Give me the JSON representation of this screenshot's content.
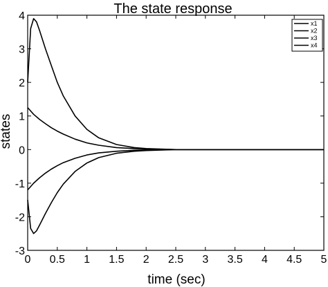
{
  "chart_data": {
    "type": "line",
    "title": "The state response",
    "xlabel": "time (sec)",
    "ylabel": "states",
    "xlim": [
      0,
      5
    ],
    "ylim": [
      -3,
      4
    ],
    "xticks": [
      0,
      0.5,
      1,
      1.5,
      2,
      2.5,
      3,
      3.5,
      4,
      4.5,
      5
    ],
    "xtick_labels": [
      "0",
      "0.5",
      "1",
      "1.5",
      "2",
      "2.5",
      "3",
      "3.5",
      "4",
      "4.5",
      "5"
    ],
    "yticks": [
      -3,
      -2,
      -1,
      0,
      1,
      2,
      3,
      4
    ],
    "ytick_labels": [
      "-3",
      "-2",
      "-1",
      "0",
      "1",
      "2",
      "3",
      "4"
    ],
    "grid": false,
    "legend_position": "top-right",
    "series": [
      {
        "name": "x1",
        "x": [
          0,
          0.05,
          0.1,
          0.15,
          0.2,
          0.3,
          0.4,
          0.5,
          0.6,
          0.8,
          1.0,
          1.2,
          1.5,
          1.8,
          2.0,
          2.5,
          3,
          4,
          5
        ],
        "y": [
          2.0,
          3.6,
          3.9,
          3.8,
          3.55,
          3.0,
          2.5,
          2.0,
          1.6,
          1.0,
          0.6,
          0.35,
          0.15,
          0.06,
          0.03,
          0.0,
          0.0,
          0.0,
          0.0
        ]
      },
      {
        "name": "x2",
        "x": [
          0,
          0.1,
          0.2,
          0.3,
          0.4,
          0.5,
          0.6,
          0.8,
          1.0,
          1.2,
          1.5,
          1.8,
          2.0,
          2.5,
          3,
          4,
          5
        ],
        "y": [
          1.25,
          1.05,
          0.9,
          0.77,
          0.65,
          0.55,
          0.46,
          0.31,
          0.2,
          0.13,
          0.06,
          0.03,
          0.02,
          0.0,
          0.0,
          0.0,
          0.0
        ]
      },
      {
        "name": "x3",
        "x": [
          0,
          0.1,
          0.2,
          0.3,
          0.4,
          0.5,
          0.6,
          0.8,
          1.0,
          1.2,
          1.5,
          1.8,
          2.0,
          2.5,
          3,
          4,
          5
        ],
        "y": [
          -1.2,
          -1.0,
          -0.84,
          -0.7,
          -0.58,
          -0.48,
          -0.39,
          -0.26,
          -0.16,
          -0.1,
          -0.05,
          -0.02,
          -0.01,
          0.0,
          0.0,
          0.0,
          0.0
        ]
      },
      {
        "name": "x4",
        "x": [
          0,
          0.05,
          0.1,
          0.15,
          0.2,
          0.3,
          0.4,
          0.5,
          0.6,
          0.8,
          1.0,
          1.2,
          1.5,
          1.8,
          2.0,
          2.5,
          3,
          4,
          5
        ],
        "y": [
          -1.5,
          -2.35,
          -2.5,
          -2.42,
          -2.25,
          -1.9,
          -1.58,
          -1.28,
          -1.03,
          -0.65,
          -0.4,
          -0.24,
          -0.11,
          -0.05,
          -0.03,
          0.0,
          0.0,
          0.0,
          0.0
        ]
      }
    ]
  },
  "colors": {
    "line": "#000000",
    "background": "#ffffff"
  }
}
